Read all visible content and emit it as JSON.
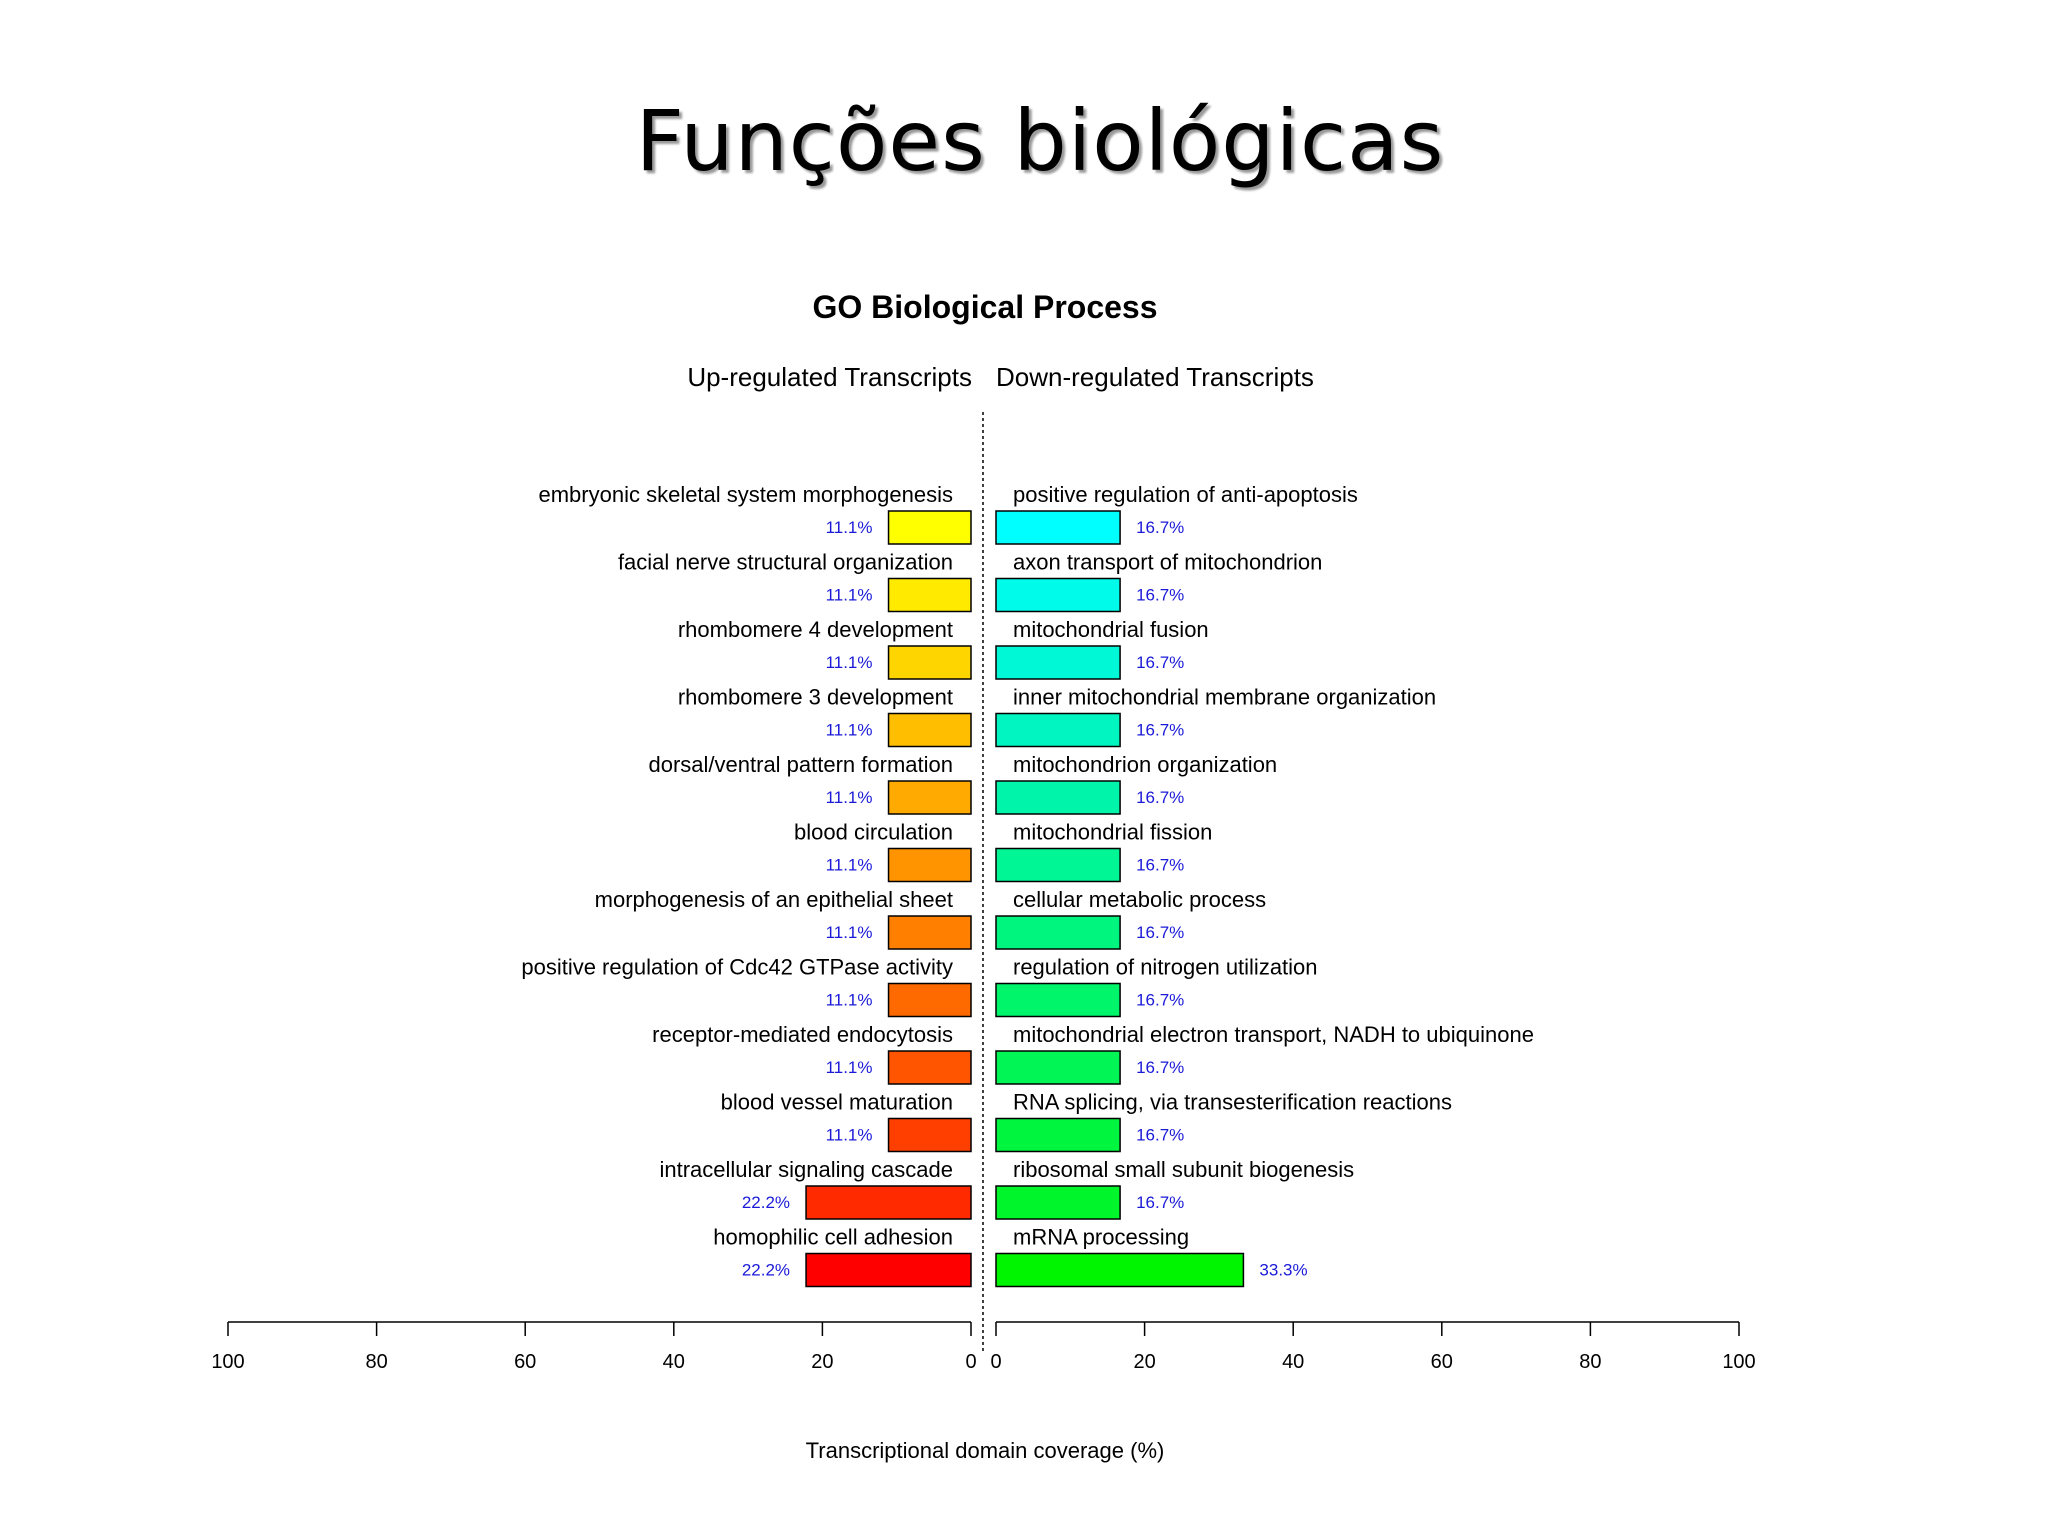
{
  "slide": {
    "title": "Funções biológicas"
  },
  "chart_data": {
    "type": "bar",
    "title": "GO Biological Process",
    "xlabel": "Transcriptional domain coverage (%)",
    "xlim": [
      0,
      100
    ],
    "ticks": [
      0,
      20,
      40,
      60,
      80,
      100
    ],
    "tick_labels": [
      "0",
      "20",
      "40",
      "60",
      "80",
      "100"
    ],
    "grid": false,
    "up": {
      "header": "Up-regulated Transcripts",
      "items": [
        {
          "label": "embryonic skeletal system morphogenesis",
          "value": 11.1,
          "text": "11.1%",
          "color": "#ffff00"
        },
        {
          "label": "facial nerve structural organization",
          "value": 11.1,
          "text": "11.1%",
          "color": "#ffea00"
        },
        {
          "label": "rhombomere 4 development",
          "value": 11.1,
          "text": "11.1%",
          "color": "#ffd500"
        },
        {
          "label": "rhombomere 3 development",
          "value": 11.1,
          "text": "11.1%",
          "color": "#ffbf00"
        },
        {
          "label": "dorsal/ventral pattern formation",
          "value": 11.1,
          "text": "11.1%",
          "color": "#ffaa00"
        },
        {
          "label": "blood circulation",
          "value": 11.1,
          "text": "11.1%",
          "color": "#ff9400"
        },
        {
          "label": "morphogenesis of an epithelial sheet",
          "value": 11.1,
          "text": "11.1%",
          "color": "#ff7f00"
        },
        {
          "label": "positive regulation of Cdc42 GTPase activity",
          "value": 11.1,
          "text": "11.1%",
          "color": "#ff6a00"
        },
        {
          "label": "receptor-mediated endocytosis",
          "value": 11.1,
          "text": "11.1%",
          "color": "#ff5500"
        },
        {
          "label": "blood vessel maturation",
          "value": 11.1,
          "text": "11.1%",
          "color": "#ff3f00"
        },
        {
          "label": "intracellular signaling cascade",
          "value": 22.2,
          "text": "22.2%",
          "color": "#ff2a00"
        },
        {
          "label": "homophilic cell adhesion",
          "value": 22.2,
          "text": "22.2%",
          "color": "#ff0000"
        }
      ]
    },
    "down": {
      "header": "Down-regulated Transcripts",
      "items": [
        {
          "label": "positive regulation of anti-apoptosis",
          "value": 16.7,
          "text": "16.7%",
          "color": "#00ffff"
        },
        {
          "label": "axon transport of mitochondrion",
          "value": 16.7,
          "text": "16.7%",
          "color": "#00fbeb"
        },
        {
          "label": "mitochondrial fusion",
          "value": 16.7,
          "text": "16.7%",
          "color": "#00f8d6"
        },
        {
          "label": "inner mitochondrial membrane organization",
          "value": 16.7,
          "text": "16.7%",
          "color": "#00f5c0"
        },
        {
          "label": "mitochondrion organization",
          "value": 16.7,
          "text": "16.7%",
          "color": "#00f5aa"
        },
        {
          "label": "mitochondrial fission",
          "value": 16.7,
          "text": "16.7%",
          "color": "#00f594"
        },
        {
          "label": "cellular metabolic process",
          "value": 16.7,
          "text": "16.7%",
          "color": "#00f57f"
        },
        {
          "label": "regulation of nitrogen utilization",
          "value": 16.7,
          "text": "16.7%",
          "color": "#00f56a"
        },
        {
          "label": "mitochondrial electron transport, NADH to ubiquinone",
          "value": 16.7,
          "text": "16.7%",
          "color": "#00f555"
        },
        {
          "label": "RNA splicing, via transesterification reactions",
          "value": 16.7,
          "text": "16.7%",
          "color": "#00f53f"
        },
        {
          "label": "ribosomal small subunit biogenesis",
          "value": 16.7,
          "text": "16.7%",
          "color": "#00f52a"
        },
        {
          "label": "mRNA processing",
          "value": 33.3,
          "text": "33.3%",
          "color": "#00f500"
        }
      ]
    }
  }
}
